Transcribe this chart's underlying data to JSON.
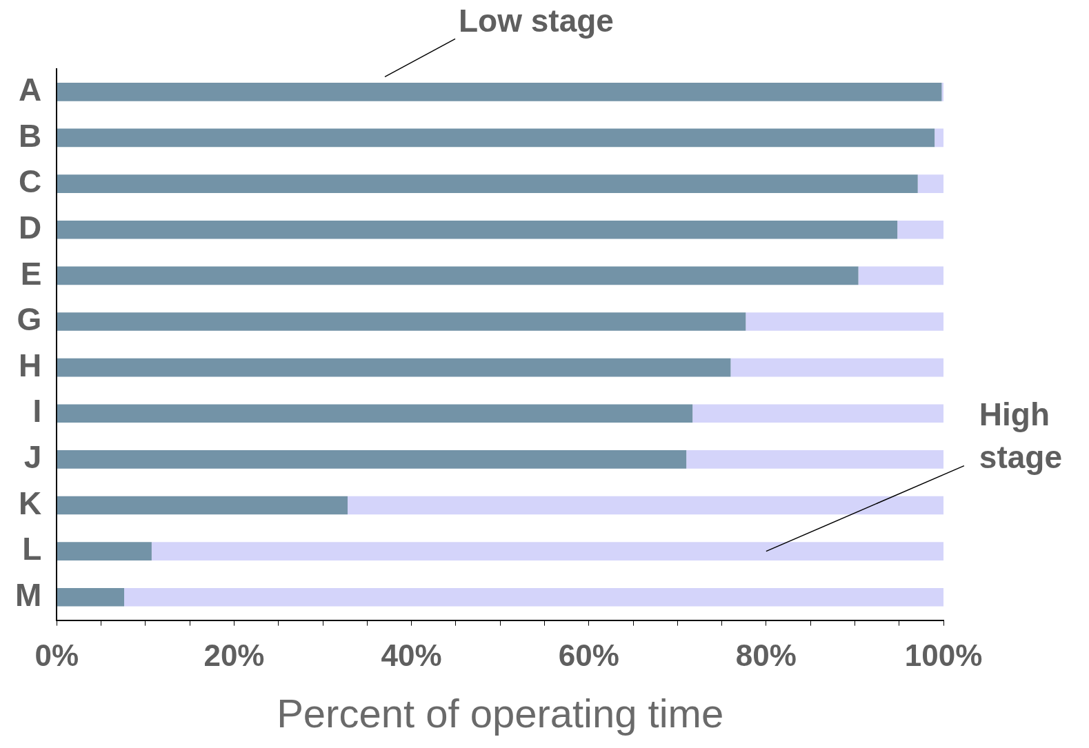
{
  "chart_data": {
    "type": "bar",
    "orientation": "horizontal",
    "stacked": true,
    "xlabel": "Percent of operating time",
    "categories": [
      "A",
      "B",
      "C",
      "D",
      "E",
      "G",
      "H",
      "I",
      "J",
      "K",
      "L",
      "M"
    ],
    "series": [
      {
        "name": "Low stage",
        "color": "#7393a7",
        "values": [
          99.8,
          99,
          97.1,
          94.8,
          90.4,
          77.7,
          76,
          71.7,
          71,
          32.8,
          10.7,
          7.6
        ]
      },
      {
        "name": "High stage",
        "color": "#d4d4fa",
        "values": [
          0.2,
          1,
          2.9,
          5.2,
          9.6,
          22.3,
          24,
          28.3,
          29,
          67.2,
          89.3,
          92.4
        ]
      }
    ],
    "xlim": [
      0,
      100
    ],
    "xticks": [
      {
        "value": 0,
        "label": "0%"
      },
      {
        "value": 5,
        "label": null
      },
      {
        "value": 10,
        "label": null
      },
      {
        "value": 15,
        "label": null
      },
      {
        "value": 20,
        "label": "20%"
      },
      {
        "value": 25,
        "label": null
      },
      {
        "value": 30,
        "label": null
      },
      {
        "value": 35,
        "label": null
      },
      {
        "value": 40,
        "label": "40%"
      },
      {
        "value": 45,
        "label": null
      },
      {
        "value": 50,
        "label": null
      },
      {
        "value": 55,
        "label": null
      },
      {
        "value": 60,
        "label": "60%"
      },
      {
        "value": 65,
        "label": null
      },
      {
        "value": 70,
        "label": null
      },
      {
        "value": 75,
        "label": null
      },
      {
        "value": 80,
        "label": "80%"
      },
      {
        "value": 85,
        "label": null
      },
      {
        "value": 90,
        "label": null
      },
      {
        "value": 95,
        "label": null
      },
      {
        "value": 100,
        "label": "100%"
      }
    ],
    "grid": false,
    "legend": false
  }
}
